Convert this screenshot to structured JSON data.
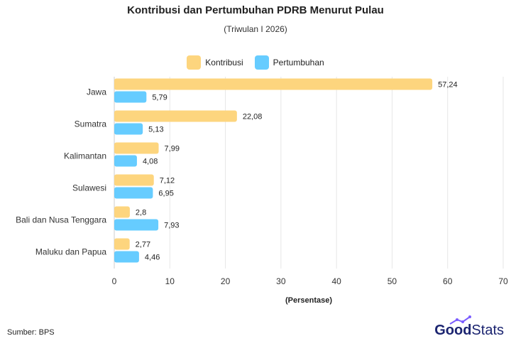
{
  "chart_data": {
    "type": "bar",
    "orientation": "horizontal",
    "title": "Kontribusi dan Pertumbuhan PDRB Menurut Pulau",
    "subtitle": "(Triwulan I 2026)",
    "xlabel": "(Persentase)",
    "ylabel": "",
    "xlim": [
      0,
      70
    ],
    "xticks": [
      0,
      10,
      20,
      30,
      40,
      50,
      60,
      70
    ],
    "grid": true,
    "legend_position": "top-center",
    "categories": [
      "Jawa",
      "Sumatra",
      "Kalimantan",
      "Sulawesi",
      "Bali dan Nusa Tenggara",
      "Maluku dan Papua"
    ],
    "series": [
      {
        "name": "Kontribusi",
        "color": "#FDD57E",
        "values": [
          57.24,
          22.08,
          7.99,
          7.12,
          2.8,
          2.77
        ],
        "labels": [
          "57,24",
          "22,08",
          "7,99",
          "7,12",
          "2,8",
          "2,77"
        ]
      },
      {
        "name": "Pertumbuhan",
        "color": "#66CCFF",
        "values": [
          5.79,
          5.13,
          4.08,
          6.95,
          7.93,
          4.46
        ],
        "labels": [
          "5,79",
          "5,13",
          "4,08",
          "6,95",
          "7,93",
          "4,46"
        ]
      }
    ]
  },
  "footer": {
    "source": "Sumber: BPS",
    "brand_good": "Good",
    "brand_stats": "Stats"
  }
}
